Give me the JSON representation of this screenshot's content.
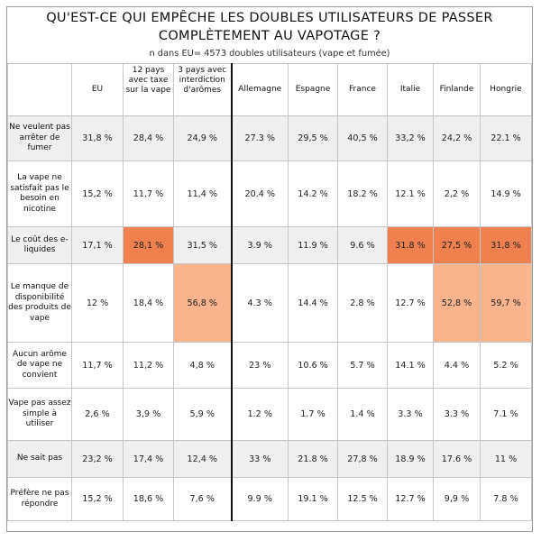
{
  "title_line1": "QU'EST-CE QUI EMPÊCHE LES DOUBLES UTILISATEURS DE PASSER",
  "title_line2": "COMPLÈTEMENT AU VAPOTAGE ?",
  "subtitle": "n dans EU= 4573 doubles utilisateurs (vape et fumée)",
  "columns": [
    "EU",
    "12 pays avec taxe sur la vape",
    "3 pays avec interdiction d'arômes",
    "Allemagne",
    "Espagne",
    "France",
    "Italie",
    "Finlande",
    "Hongrie"
  ],
  "rows": [
    {
      "label": "Ne veulent pas arrêter de fumer",
      "values": [
        "31,8 %",
        "28,4 %",
        "24,9 %",
        "27.3 %",
        "29,5 %",
        "40,5 %",
        "33,2 %",
        "24,2 %",
        "22.1 %"
      ]
    },
    {
      "label": "La vape ne satisfait pas le besoin en nicotine",
      "values": [
        "15,2 %",
        "11,7 %",
        "11,4 %",
        "20.4 %",
        "14.2 %",
        "18.2 %",
        "12.1 %",
        "2,2 %",
        "14.9 %"
      ]
    },
    {
      "label": "Le coût des e-liquides",
      "values": [
        "17,1 %",
        "28,1 %",
        "31,5 %",
        "3.9 %",
        "11.9 %",
        "9.6 %",
        "31.8 %",
        "27,5 %",
        "31,8 %"
      ]
    },
    {
      "label": "Le manque de disponibilité des produits de vape",
      "values": [
        "12 %",
        "18,4 %",
        "56,8 %",
        "4.3 %",
        "14.4 %",
        "2.8 %",
        "12.7 %",
        "52,8 %",
        "59,7 %"
      ]
    },
    {
      "label": "Aucun arôme de vape ne convient",
      "values": [
        "11,7 %",
        "11,2 %",
        "4,8 %",
        "23 %",
        "10.6 %",
        "5.7 %",
        "14.1 %",
        "4.4 %",
        "5.2 %"
      ]
    },
    {
      "label": "Vape pas assez simple à utiliser",
      "values": [
        "2,6 %",
        "3,9 %",
        "5,9 %",
        "1.2 %",
        "1.7 %",
        "1.4 %",
        "3.3 %",
        "3.3 %",
        "7.1 %"
      ]
    },
    {
      "label": "Ne sait pas",
      "values": [
        "23,2 %",
        "17,4 %",
        "12,4 %",
        "33 %",
        "21.8 %",
        "27,8 %",
        "18.9 %",
        "17.6 %",
        "11 %"
      ]
    },
    {
      "label": "Préfère ne pas répondre",
      "values": [
        "15,2 %",
        "18,6 %",
        "7,6 %",
        "9.9 %",
        "19.1 %",
        "12.5 %",
        "12.7 %",
        "9,9 %",
        "7.8 %"
      ]
    }
  ],
  "highlights": [
    {
      "row": 2,
      "col": 1,
      "level": "hot"
    },
    {
      "row": 2,
      "col": 6,
      "level": "hot"
    },
    {
      "row": 2,
      "col": 7,
      "level": "hot"
    },
    {
      "row": 2,
      "col": 8,
      "level": "hot"
    },
    {
      "row": 3,
      "col": 2,
      "level": "warm"
    },
    {
      "row": 3,
      "col": 7,
      "level": "warm"
    },
    {
      "row": 3,
      "col": 8,
      "level": "warm"
    }
  ],
  "colors": {
    "hot": "#f08050",
    "warm": "#f9b48d",
    "strip": "#efefef"
  }
}
